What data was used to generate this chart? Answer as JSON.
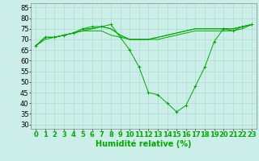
{
  "xlabel": "Humidité relative (%)",
  "background_color": "#cceee8",
  "grid_color": "#aaddcc",
  "line_color": "#00aa00",
  "xlim": [
    -0.5,
    23.5
  ],
  "ylim": [
    28,
    87
  ],
  "yticks": [
    30,
    35,
    40,
    45,
    50,
    55,
    60,
    65,
    70,
    75,
    80,
    85
  ],
  "xticks": [
    0,
    1,
    2,
    3,
    4,
    5,
    6,
    7,
    8,
    9,
    10,
    11,
    12,
    13,
    14,
    15,
    16,
    17,
    18,
    19,
    20,
    21,
    22,
    23
  ],
  "series": [
    [
      67,
      71,
      71,
      72,
      73,
      75,
      76,
      76,
      77,
      71,
      65,
      57,
      45,
      44,
      40,
      36,
      39,
      48,
      57,
      69,
      75,
      74,
      76,
      77
    ],
    [
      67,
      71,
      71,
      72,
      73,
      75,
      75,
      76,
      75,
      72,
      70,
      70,
      70,
      71,
      72,
      73,
      74,
      75,
      75,
      75,
      75,
      75,
      76,
      77
    ],
    [
      67,
      71,
      71,
      72,
      73,
      74,
      75,
      76,
      75,
      72,
      70,
      70,
      70,
      71,
      72,
      73,
      74,
      75,
      75,
      75,
      75,
      75,
      76,
      77
    ],
    [
      67,
      70,
      71,
      72,
      73,
      74,
      74,
      74,
      72,
      71,
      70,
      70,
      70,
      70,
      71,
      72,
      73,
      74,
      74,
      74,
      74,
      74,
      75,
      77
    ]
  ],
  "axis_fontsize": 7,
  "tick_fontsize": 6
}
